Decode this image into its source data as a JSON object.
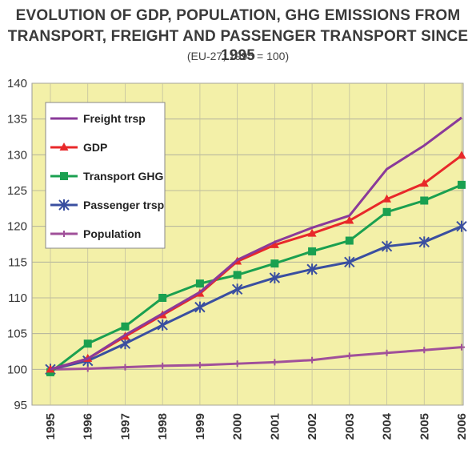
{
  "title_line1": "EVOLUTION OF GDP, POPULATION, GHG EMISSIONS FROM",
  "title_line2": "TRANSPORT, FREIGHT AND PASSENGER TRANSPORT SINCE 1995",
  "subtitle": "(EU-27; 1995 = 100)",
  "chart_data": {
    "type": "line",
    "title": "EVOLUTION OF GDP, POPULATION, GHG EMISSIONS FROM TRANSPORT, FREIGHT AND PASSENGER TRANSPORT SINCE 1995",
    "subtitle": "(EU-27; 1995 = 100)",
    "x": [
      "1995",
      "1996",
      "1997",
      "1998",
      "1999",
      "2000",
      "2001",
      "2002",
      "2003",
      "2004",
      "2005",
      "2006"
    ],
    "ylim": [
      95,
      140
    ],
    "yticks": [
      95,
      100,
      105,
      110,
      115,
      120,
      125,
      130,
      135,
      140
    ],
    "grid": true,
    "legend_position": "top-left",
    "background": "#f3f0a8",
    "series": [
      {
        "name": "Freight trsp",
        "color": "#8a3a9a",
        "marker": "none",
        "values": [
          100,
          101.5,
          104.8,
          107.8,
          110.8,
          115.3,
          117.8,
          119.8,
          121.5,
          128,
          131.3,
          135.2
        ]
      },
      {
        "name": "GDP",
        "color": "#e8282a",
        "marker": "triangle",
        "values": [
          100,
          101.5,
          104.6,
          107.6,
          110.6,
          115.1,
          117.4,
          119,
          120.8,
          123.8,
          126,
          129.9
        ]
      },
      {
        "name": "Transport GHG",
        "color": "#1aa050",
        "marker": "square",
        "values": [
          99.6,
          103.6,
          106,
          110,
          112,
          113.2,
          114.8,
          116.5,
          118,
          122,
          123.6,
          125.8
        ]
      },
      {
        "name": "Passenger trsp",
        "color": "#3a4fa0",
        "marker": "asterisk",
        "values": [
          100,
          101.2,
          103.6,
          106.2,
          108.7,
          111.2,
          112.8,
          114,
          115,
          117.2,
          117.8,
          120
        ]
      },
      {
        "name": "Population",
        "color": "#a0509a",
        "marker": "cross",
        "values": [
          100,
          100.1,
          100.3,
          100.5,
          100.6,
          100.8,
          101,
          101.3,
          101.9,
          102.3,
          102.7,
          103.1
        ]
      }
    ]
  }
}
